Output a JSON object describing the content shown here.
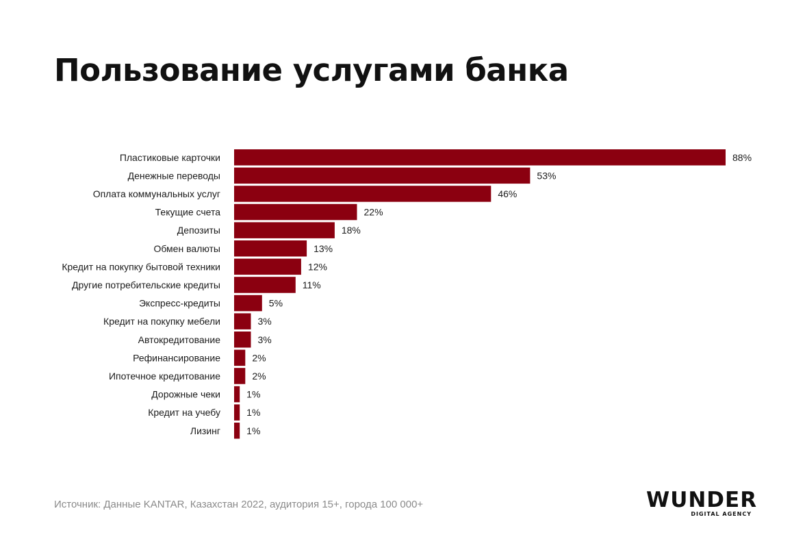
{
  "title": "Пользование услугами банка",
  "source": "Источник: Данные KANTAR, Казахстан 2022, аудитория 15+, города 100 000+",
  "logo": {
    "word": "WUNDER",
    "tagline": "DIGITAL AGENCY"
  },
  "colors": {
    "bar": "#8b0010",
    "label": "#1a1a1a",
    "source": "#8a8a8a"
  },
  "chart_data": {
    "type": "bar",
    "orientation": "horizontal",
    "title": "Пользование услугами банка",
    "categories": [
      "Пластиковые карточки",
      "Денежные переводы",
      "Оплата коммунальных услуг",
      "Текущие счета",
      "Депозиты",
      "Обмен валюты",
      "Кредит на покупку бытовой техники",
      "Другие потребительские кредиты",
      "Экспресс-кредиты",
      "Кредит на покупку мебели",
      "Автокредитование",
      "Рефинансирование",
      "Ипотечное кредитование",
      "Дорожные чеки",
      "Кредит на учебу",
      "Лизинг"
    ],
    "values": [
      88,
      53,
      46,
      22,
      18,
      13,
      12,
      11,
      5,
      3,
      3,
      2,
      2,
      1,
      1,
      1
    ],
    "value_labels": [
      "88%",
      "53%",
      "46%",
      "22%",
      "18%",
      "13%",
      "12%",
      "11%",
      "5%",
      "3%",
      "3%",
      "2%",
      "2%",
      "1%",
      "1%",
      "1%"
    ],
    "unit": "%",
    "xlim": [
      0,
      88
    ],
    "grid": false,
    "legend": "none"
  }
}
